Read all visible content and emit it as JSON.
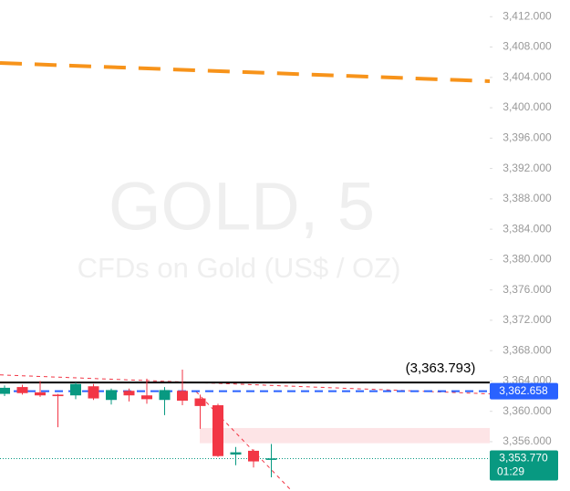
{
  "chart_data": {
    "type": "candlestick",
    "title": "GOLD, 5",
    "subtitle": "CFDs on Gold (US$ / OZ)",
    "up_color": "#089981",
    "down_color": "#f23645",
    "series": {
      "open": [
        3362.3,
        3363.2,
        3362.5,
        3362.2,
        3362.1,
        3363.3,
        3361.5,
        3362.7,
        3362.1,
        3361.5,
        3362.7,
        3361.7,
        3360.8,
        3354.3,
        3354.8,
        3353.6
      ],
      "high": [
        3363.4,
        3363.5,
        3364.0,
        3362.3,
        3363.8,
        3363.6,
        3363.0,
        3363.0,
        3364.3,
        3363.2,
        3365.5,
        3362.2,
        3361.0,
        3355.3,
        3355.0,
        3355.7
      ],
      "low": [
        3362.0,
        3362.2,
        3361.9,
        3357.9,
        3361.6,
        3361.5,
        3360.9,
        3361.3,
        3361.0,
        3359.5,
        3360.8,
        3357.7,
        3354.0,
        3352.9,
        3352.6,
        3351.3
      ],
      "close": [
        3363.1,
        3362.4,
        3362.1,
        3362.0,
        3363.6,
        3361.7,
        3362.8,
        3362.1,
        3361.6,
        3362.8,
        3361.4,
        3360.7,
        3354.1,
        3354.6,
        3353.4,
        3353.8
      ]
    },
    "ylim": [
      3349.5,
      3414.2
    ],
    "yticks": [
      {
        "value": 3412,
        "label": "3,412.000"
      },
      {
        "value": 3408,
        "label": "3,408.000"
      },
      {
        "value": 3404,
        "label": "3,404.000"
      },
      {
        "value": 3400,
        "label": "3,400.000"
      },
      {
        "value": 3396,
        "label": "3,396.000"
      },
      {
        "value": 3392,
        "label": "3,392.000"
      },
      {
        "value": 3388,
        "label": "3,388.000"
      },
      {
        "value": 3384,
        "label": "3,384.000"
      },
      {
        "value": 3380,
        "label": "3,380.000"
      },
      {
        "value": 3376,
        "label": "3,376.000"
      },
      {
        "value": 3372,
        "label": "3,372.000"
      },
      {
        "value": 3368,
        "label": "3,368.000"
      },
      {
        "value": 3364,
        "label": "3,364.000"
      },
      {
        "value": 3360,
        "label": "3,360.000"
      },
      {
        "value": 3356,
        "label": "3,356.000"
      }
    ],
    "resistance": {
      "values": [
        3405.9,
        3403.5
      ],
      "color": "#f7931a"
    },
    "trendlines": [
      {
        "values": [
          3364.8,
          3362.3
        ],
        "color": "#f23645"
      },
      {
        "values": [
          3362.6,
          3349.5
        ],
        "color": "#f23645"
      }
    ],
    "zone": {
      "values": [
        3355.8,
        3357.8
      ],
      "color": "#fde4e6"
    },
    "level_line": {
      "value": 3363.793,
      "label": "(3,363.793)"
    },
    "price_line": {
      "value": 3362.658,
      "label": "3,362.658",
      "color": "#2962ff"
    },
    "last_price": {
      "value": 3353.77,
      "label": "3,353.770",
      "countdown": "01:29",
      "color": "#089981"
    }
  }
}
